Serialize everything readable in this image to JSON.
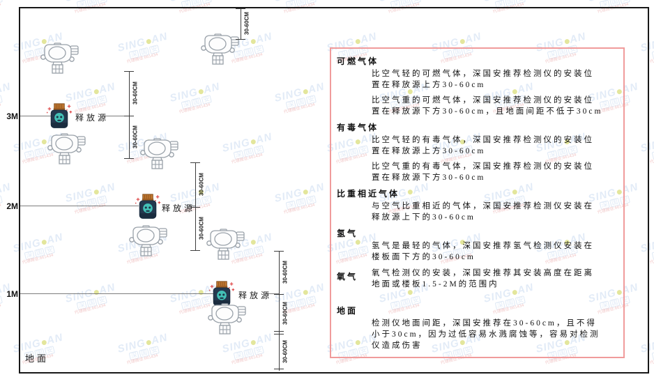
{
  "watermark": {
    "brand_left": "SING",
    "brand_right": "AN",
    "cjk_chars": [
      "深",
      "国",
      "安"
    ],
    "contact": "代理微信:661434",
    "brand_color": "#c6d9f0",
    "dot_color": "#c9cf3c",
    "contact_color": "#e48f8f"
  },
  "diagram": {
    "height_labels": [
      {
        "id": "3m",
        "text": "3M"
      },
      {
        "id": "2m",
        "text": "2M"
      },
      {
        "id": "1m",
        "text": "1M"
      }
    ],
    "ground_label": "地面",
    "source_label": "释放源",
    "dim_label": "30-60CM"
  },
  "panel": {
    "border_color": "#f09b9b",
    "sections": [
      {
        "heading": "可燃气体",
        "inline": false,
        "gap_before": false,
        "paras": [
          "比空气轻的可燃气体，深国安推荐检测仪的安装位置在释放源上方30-60cm",
          "比空气重的可燃气体，深国安推荐检测仪的安装位置在释放源下方30-60cm，且地面间距不低于30cm"
        ]
      },
      {
        "heading": "有毒气体",
        "inline": false,
        "gap_before": false,
        "paras": [
          "比空气轻的有毒气体，深国安推荐检测仪的安装位置在释放源上方30-60cm",
          "比空气重的有毒气体，深国安推荐检测仪的安装位置在释放源下方30-60cm"
        ]
      },
      {
        "heading": "比重相近气体",
        "inline": false,
        "gap_before": false,
        "paras": [
          "与空气比重相近的气体，深国安推荐检测仪安装在释放源上下的30-60cm"
        ]
      },
      {
        "heading": "氢气",
        "inline": false,
        "gap_before": false,
        "paras": [
          "氢气是最轻的气体，深国安推荐氢气检测仪安装在楼板面下方的30-60cm"
        ]
      },
      {
        "heading": "氧气",
        "inline": true,
        "gap_before": false,
        "paras": [
          "氧气检测仪的安装，深国安推荐其安装高度在距离地面或楼板1.5-2M的范围内"
        ]
      },
      {
        "heading": "地面",
        "inline": false,
        "gap_before": true,
        "paras": [
          "检测仪地面间距，深国安推荐在30-60cm，且不得小于30cm，因为过低容易水溅腐蚀等，容易对检测仪造成伤害"
        ]
      }
    ]
  }
}
